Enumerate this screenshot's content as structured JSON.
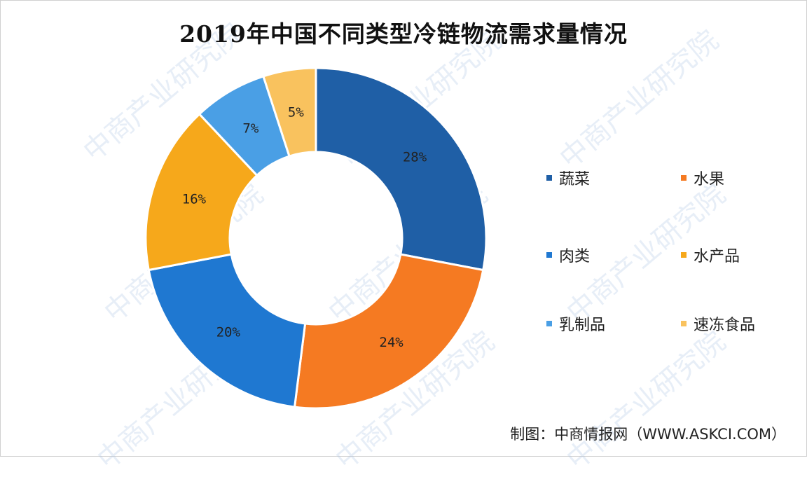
{
  "title": "2019年中国不同类型冷链物流需求量情况",
  "source": "制图：中商情报网（WWW.ASKCI.COM）",
  "watermark": "中商产业研究院",
  "chart_data": {
    "type": "pie",
    "title": "2019年中国不同类型冷链物流需求量情况",
    "donut": true,
    "legend_position": "right",
    "categories": [
      "蔬菜",
      "水果",
      "肉类",
      "水产品",
      "乳制品",
      "速冻食品"
    ],
    "values": [
      28,
      24,
      20,
      16,
      7,
      5
    ],
    "labels": [
      "28%",
      "24%",
      "20%",
      "16%",
      "7%",
      "5%"
    ],
    "colors": [
      "#1f5fa6",
      "#f57a22",
      "#1f78d1",
      "#f6a81b",
      "#4a9fe5",
      "#f9c25e"
    ]
  }
}
